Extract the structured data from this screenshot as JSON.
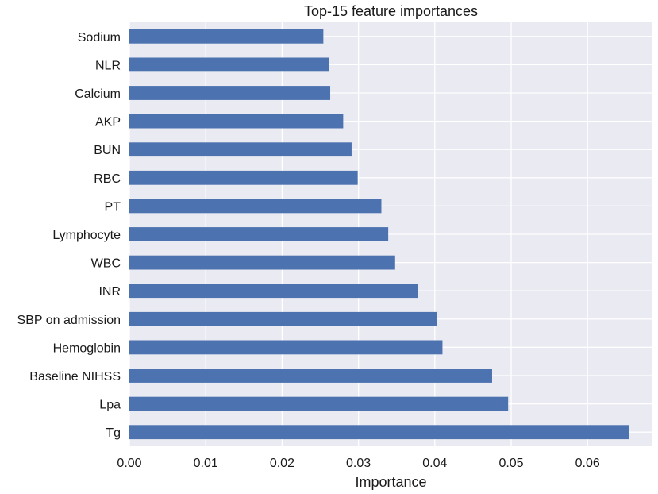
{
  "chart_data": {
    "type": "bar",
    "orientation": "horizontal",
    "title": "Top-15 feature importances",
    "xlabel": "Importance",
    "ylabel": "",
    "xlim": [
      0,
      0.0685
    ],
    "xticks": [
      0.0,
      0.01,
      0.02,
      0.03,
      0.04,
      0.05,
      0.06
    ],
    "xtick_labels": [
      "0.00",
      "0.01",
      "0.02",
      "0.03",
      "0.04",
      "0.05",
      "0.06"
    ],
    "grid": true,
    "colors": {
      "bar": "#4c72b0",
      "plot_background": "#eaeaf2",
      "grid": "#ffffff"
    },
    "categories": [
      "Sodium",
      "NLR",
      "Calcium",
      "AKP",
      "BUN",
      "RBC",
      "PT",
      "Lymphocyte",
      "WBC",
      "INR",
      "SBP on admission",
      "Hemoglobin",
      "Baseline NIHSS",
      "Lpa",
      "Tg"
    ],
    "values": [
      0.0254,
      0.0261,
      0.0263,
      0.028,
      0.0291,
      0.0299,
      0.033,
      0.0339,
      0.0348,
      0.0378,
      0.0403,
      0.041,
      0.0475,
      0.0496,
      0.0654
    ]
  }
}
